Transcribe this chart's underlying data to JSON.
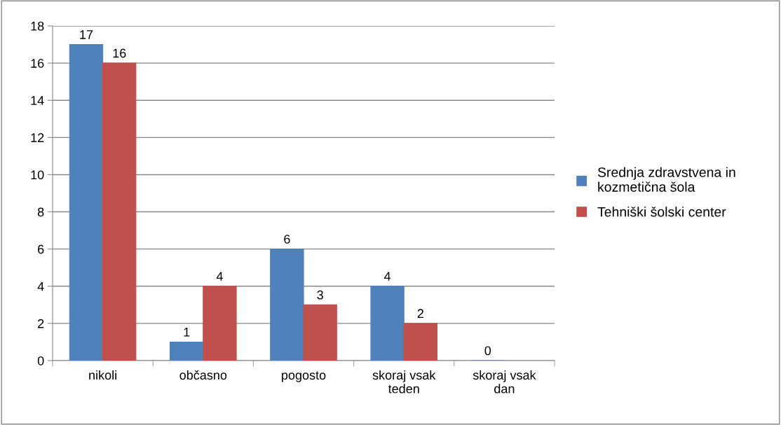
{
  "chart_data": {
    "type": "bar",
    "categories": [
      "nikoli",
      "občasno",
      "pogosto",
      "skoraj vsak\nteden",
      "skoraj vsak\ndan"
    ],
    "series": [
      {
        "name": "Srednja zdravstvena in\nkozmetična šola",
        "color": "#4f81bd",
        "values": [
          17,
          1,
          6,
          4,
          0
        ]
      },
      {
        "name": "Tehniški šolski center",
        "color": "#c0504d",
        "values": [
          16,
          4,
          3,
          2,
          null
        ]
      }
    ],
    "ylim": [
      0,
      18
    ],
    "yticks": [
      0,
      2,
      4,
      6,
      8,
      10,
      12,
      14,
      16,
      18
    ],
    "grid": "y",
    "legend": "right",
    "data_labels": true
  }
}
